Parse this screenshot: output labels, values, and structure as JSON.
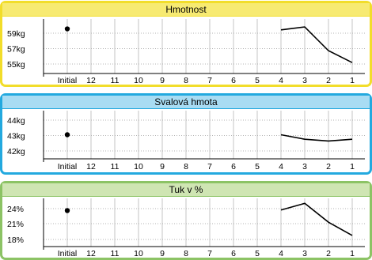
{
  "chart_data": [
    {
      "type": "line",
      "title": "Hmotnost",
      "x": [
        "Initial",
        "12",
        "11",
        "10",
        "9",
        "8",
        "7",
        "6",
        "5",
        "4",
        "3",
        "2",
        "1"
      ],
      "yticks": [
        "59kg",
        "57kg",
        "55kg"
      ],
      "ylim": [
        54.5,
        60
      ],
      "series": [
        {
          "values": [
            59,
            null,
            null,
            null,
            null,
            null,
            null,
            null,
            null,
            58.9,
            59.2,
            56.8,
            55.6
          ]
        }
      ],
      "grid": true,
      "colors": {
        "border": "#f2dd2a",
        "title_bg": "#f7ea72",
        "line": "#000000"
      }
    },
    {
      "type": "line",
      "title": "Svalová hmota",
      "x": [
        "Initial",
        "12",
        "11",
        "10",
        "9",
        "8",
        "7",
        "6",
        "5",
        "4",
        "3",
        "2",
        "1"
      ],
      "yticks": [
        "44kg",
        "43kg",
        "42kg"
      ],
      "ylim": [
        41.7,
        44.4
      ],
      "series": [
        {
          "values": [
            43.05,
            null,
            null,
            null,
            null,
            null,
            null,
            null,
            null,
            43.05,
            42.8,
            42.7,
            42.8
          ]
        }
      ],
      "grid": true,
      "colors": {
        "border": "#23a9df",
        "title_bg": "#a8dcf3",
        "line": "#000000"
      }
    },
    {
      "type": "line",
      "title": "Tuk v %",
      "x": [
        "Initial",
        "12",
        "11",
        "10",
        "9",
        "8",
        "7",
        "6",
        "5",
        "4",
        "3",
        "2",
        "1"
      ],
      "yticks": [
        "24%",
        "21%",
        "18%"
      ],
      "ylim": [
        16.8,
        25.5
      ],
      "series": [
        {
          "values": [
            23.3,
            null,
            null,
            null,
            null,
            null,
            null,
            null,
            null,
            23.4,
            24.6,
            21.2,
            18.8
          ]
        }
      ],
      "grid": true,
      "colors": {
        "border": "#8cc365",
        "title_bg": "#cfe5b3",
        "line": "#000000"
      }
    }
  ]
}
